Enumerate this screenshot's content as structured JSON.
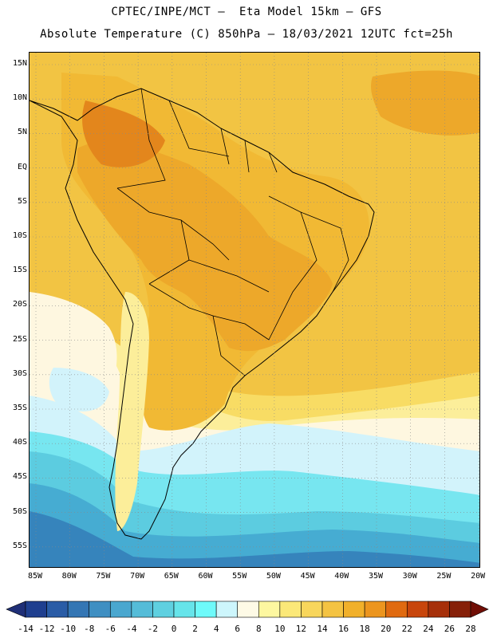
{
  "title_line1": "CPTEC/INPE/MCT –  Eta Model 15km – GFS",
  "title_line2": "Absolute Temperature (C) 850hPa – 18/03/2021 12UTC fct=25h",
  "lat_labels": [
    "15N",
    "10N",
    "5N",
    "EQ",
    "5S",
    "10S",
    "15S",
    "20S",
    "25S",
    "30S",
    "35S",
    "40S",
    "45S",
    "50S",
    "55S"
  ],
  "lon_labels": [
    "85W",
    "80W",
    "75W",
    "70W",
    "65W",
    "60W",
    "55W",
    "50W",
    "45W",
    "40W",
    "35W",
    "30W",
    "25W",
    "20W"
  ],
  "colorbar": {
    "labels": [
      "-14",
      "-12",
      "-10",
      "-8",
      "-6",
      "-4",
      "-2",
      "0",
      "2",
      "4",
      "6",
      "8",
      "10",
      "12",
      "14",
      "16",
      "18",
      "20",
      "22",
      "24",
      "26",
      "28"
    ],
    "colors": [
      "#1f3f8f",
      "#2a5ca6",
      "#3476b4",
      "#3f8fc2",
      "#4aa7cf",
      "#55bcd8",
      "#5fd0e0",
      "#66e4ea",
      "#6efafa",
      "#cdf6fc",
      "#fefae6",
      "#fdf7a0",
      "#fbe878",
      "#f8d65c",
      "#f4c342",
      "#f1b02a",
      "#ec951e",
      "#e06a10",
      "#c8460c",
      "#a6300a",
      "#862008"
    ],
    "under_color": "#1f2f77",
    "over_color": "#700e06"
  },
  "map": {
    "colors": {
      "hot_core": "#e3861c",
      "warm": "#eda82a",
      "mild": "#f1b934",
      "tropical_ocean": "#f2c443",
      "yellow": "#f8dc64",
      "pale_yellow": "#fcee9a",
      "cream": "#fef7e0",
      "pale_cyan": "#d2f3fb",
      "cyan": "#77e6f0",
      "light_blue": "#5ccce0",
      "mid_blue": "#46acd2",
      "deep_blue": "#3684bc"
    }
  }
}
